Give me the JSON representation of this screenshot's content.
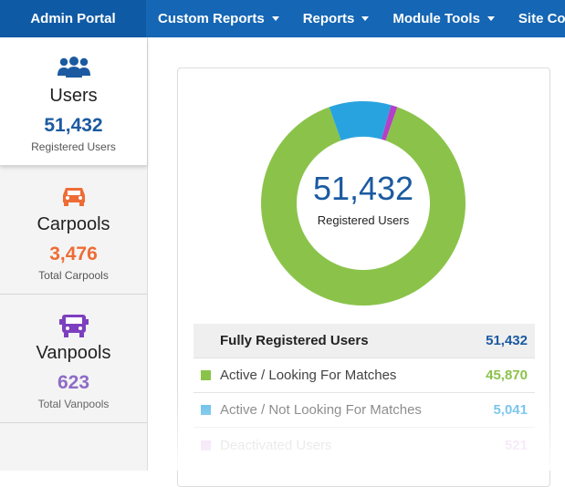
{
  "topbar": {
    "brand": "Admin Portal",
    "nav": [
      {
        "label": "Custom Reports"
      },
      {
        "label": "Reports"
      },
      {
        "label": "Module Tools"
      },
      {
        "label": "Site Confi"
      }
    ]
  },
  "sidebar": {
    "cards": [
      {
        "icon": "users-icon",
        "label": "Users",
        "count": "51,432",
        "sub": "Registered Users",
        "color": "#1b5aa0"
      },
      {
        "icon": "car-icon",
        "label": "Carpools",
        "count": "3,476",
        "sub": "Total Carpools",
        "color": "#ee6c35"
      },
      {
        "icon": "van-icon",
        "label": "Vanpools",
        "count": "623",
        "sub": "Total Vanpools",
        "color": "#7d3fbf"
      }
    ]
  },
  "summary": {
    "total": "51,432",
    "total_label": "Registered Users"
  },
  "chart_data": {
    "type": "pie",
    "categories": [
      "Active / Looking For Matches",
      "Active / Not Looking For Matches",
      "Deactivated Users"
    ],
    "values": [
      45870,
      5041,
      521
    ],
    "colors": [
      "#8bc34a",
      "#29a3e0",
      "#b340c6"
    ]
  },
  "table": {
    "header": {
      "label": "Fully Registered Users",
      "value": "51,432"
    },
    "rows": [
      {
        "label": "Active / Looking For Matches",
        "value": "45,870",
        "color": "#8bc34a"
      },
      {
        "label": "Active / Not Looking For Matches",
        "value": "5,041",
        "color": "#29a3e0"
      },
      {
        "label": "Deactivated Users",
        "value": "521",
        "color": "#b340c6"
      }
    ]
  }
}
